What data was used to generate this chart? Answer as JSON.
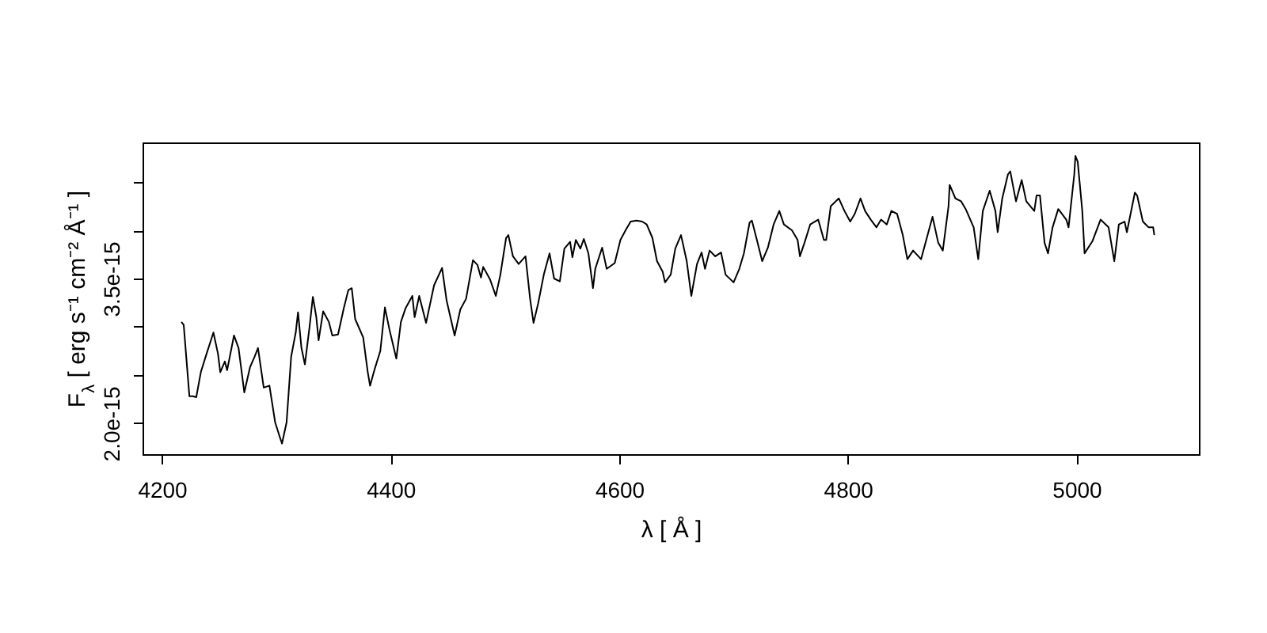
{
  "chart_data": {
    "type": "line",
    "xlabel": "λ [ Å ]",
    "ylabel": "F$_{λ}$ [ erg s⁻¹ cm⁻² Å⁻¹ ]",
    "color": "#000000",
    "xlim": [
      4183,
      5107
    ],
    "xticks": [
      4200,
      4400,
      4600,
      4800,
      5000
    ],
    "ylim": [
      1.68e-15,
      4.91e-15
    ],
    "yticks": [
      {
        "value": 2e-15,
        "label": "2.0e-15"
      },
      {
        "value": 2.5e-15,
        "label": null
      },
      {
        "value": 3e-15,
        "label": null
      },
      {
        "value": 3.5e-15,
        "label": "3.5e-15"
      },
      {
        "value": 4e-15,
        "label": null
      },
      {
        "value": 4.5e-15,
        "label": null
      }
    ],
    "x": [
      4217,
      4219,
      4224,
      4227,
      4230,
      4234,
      4239,
      4242,
      4245,
      4249,
      4251,
      4255,
      4257,
      4263,
      4267,
      4272,
      4277,
      4281,
      4284,
      4289,
      4294,
      4299,
      4303,
      4305,
      4309,
      4313,
      4317,
      4319,
      4322,
      4325,
      4329,
      4332,
      4335,
      4337,
      4341,
      4346,
      4349,
      4354,
      4359,
      4363,
      4366,
      4369,
      4376,
      4380,
      4382,
      4386,
      4391,
      4395,
      4399,
      4405,
      4409,
      4413,
      4419,
      4421,
      4425,
      4431,
      4438,
      4445,
      4449,
      4456,
      4461,
      4466,
      4472,
      4476,
      4479,
      4481,
      4487,
      4492,
      4496,
      4501,
      4503,
      4507,
      4512,
      4518,
      4522,
      4525,
      4529,
      4534,
      4539,
      4543,
      4548,
      4552,
      4557,
      4559,
      4562,
      4566,
      4569,
      4573,
      4577,
      4579,
      4585,
      4589,
      4596,
      4601,
      4606,
      4610,
      4615,
      4620,
      4624,
      4629,
      4633,
      4638,
      4640,
      4645,
      4649,
      4654,
      4659,
      4663,
      4668,
      4672,
      4675,
      4679,
      4684,
      4689,
      4693,
      4700,
      4705,
      4709,
      4714,
      4716,
      4721,
      4725,
      4730,
      4735,
      4740,
      4744,
      4751,
      4756,
      4758,
      4762,
      4767,
      4774,
      4779,
      4781,
      4785,
      4792,
      4797,
      4802,
      4806,
      4811,
      4815,
      4820,
      4825,
      4829,
      4834,
      4838,
      4843,
      4848,
      4852,
      4857,
      4864,
      4869,
      4874,
      4879,
      4883,
      4888,
      4889,
      4894,
      4899,
      4903,
      4910,
      4914,
      4918,
      4924,
      4929,
      4931,
      4935,
      4940,
      4942,
      4947,
      4952,
      4956,
      4963,
      4965,
      4968,
      4972,
      4975,
      4979,
      4984,
      4991,
      4993,
      4998,
      4999,
      5001,
      5005,
      5007,
      5014,
      5021,
      5028,
      5033,
      5037,
      5042,
      5044,
      5051,
      5053,
      5058,
      5063,
      5067,
      5068
    ],
    "values": [
      3.05e-15,
      3.02e-15,
      2.28e-15,
      2.28e-15,
      2.27e-15,
      2.53e-15,
      2.72e-15,
      2.83e-15,
      2.94e-15,
      2.72e-15,
      2.53e-15,
      2.64e-15,
      2.55e-15,
      2.91e-15,
      2.78e-15,
      2.32e-15,
      2.58e-15,
      2.69e-15,
      2.78e-15,
      2.37e-15,
      2.39e-15,
      2.01e-15,
      1.86e-15,
      1.79e-15,
      2.01e-15,
      2.69e-15,
      2.94e-15,
      3.15e-15,
      2.78e-15,
      2.61e-15,
      2.99e-15,
      3.31e-15,
      3.1e-15,
      2.86e-15,
      3.16e-15,
      3.05e-15,
      2.91e-15,
      2.92e-15,
      3.19e-15,
      3.38e-15,
      3.4e-15,
      3.08e-15,
      2.89e-15,
      2.53e-15,
      2.39e-15,
      2.56e-15,
      2.75e-15,
      3.2e-15,
      2.97e-15,
      2.67e-15,
      3.05e-15,
      3.19e-15,
      3.32e-15,
      3.1e-15,
      3.32e-15,
      3.04e-15,
      3.43e-15,
      3.61e-15,
      3.27e-15,
      2.91e-15,
      3.18e-15,
      3.29e-15,
      3.69e-15,
      3.64e-15,
      3.51e-15,
      3.62e-15,
      3.49e-15,
      3.32e-15,
      3.54e-15,
      3.92e-15,
      3.95e-15,
      3.73e-15,
      3.65e-15,
      3.73e-15,
      3.29e-15,
      3.04e-15,
      3.24e-15,
      3.54e-15,
      3.76e-15,
      3.5e-15,
      3.47e-15,
      3.81e-15,
      3.88e-15,
      3.72e-15,
      3.9e-15,
      3.81e-15,
      3.91e-15,
      3.76e-15,
      3.4e-15,
      3.6e-15,
      3.82e-15,
      3.6e-15,
      3.66e-15,
      3.9e-15,
      4.01e-15,
      4.09e-15,
      4.1e-15,
      4.09e-15,
      4.06e-15,
      3.92e-15,
      3.68e-15,
      3.57e-15,
      3.46e-15,
      3.54e-15,
      3.81e-15,
      3.95e-15,
      3.68e-15,
      3.32e-15,
      3.65e-15,
      3.77e-15,
      3.6e-15,
      3.79e-15,
      3.73e-15,
      3.77e-15,
      3.54e-15,
      3.46e-15,
      3.6e-15,
      3.76e-15,
      4.08e-15,
      4.1e-15,
      3.87e-15,
      3.68e-15,
      3.82e-15,
      4.06e-15,
      4.2e-15,
      4.06e-15,
      4e-15,
      3.9e-15,
      3.73e-15,
      3.87e-15,
      4.06e-15,
      4.11e-15,
      3.9e-15,
      3.9e-15,
      4.25e-15,
      4.33e-15,
      4.2e-15,
      4.09e-15,
      4.17e-15,
      4.33e-15,
      4.2e-15,
      4.11e-15,
      4.03e-15,
      4.11e-15,
      4.06e-15,
      4.2e-15,
      4.17e-15,
      3.95e-15,
      3.7e-15,
      3.79e-15,
      3.7e-15,
      3.92e-15,
      4.14e-15,
      3.87e-15,
      3.79e-15,
      4.25e-15,
      4.47e-15,
      4.33e-15,
      4.3e-15,
      4.22e-15,
      4.03e-15,
      3.7e-15,
      4.2e-15,
      4.41e-15,
      4.2e-15,
      3.98e-15,
      4.33e-15,
      4.58e-15,
      4.61e-15,
      4.3e-15,
      4.52e-15,
      4.3e-15,
      4.2e-15,
      4.36e-15,
      4.36e-15,
      3.87e-15,
      3.76e-15,
      4.03e-15,
      4.22e-15,
      4.11e-15,
      4.03e-15,
      4.58e-15,
      4.77e-15,
      4.71e-15,
      4.2e-15,
      3.76e-15,
      3.89e-15,
      4.11e-15,
      4.03e-15,
      3.68e-15,
      4.06e-15,
      4.09e-15,
      3.98e-15,
      4.39e-15,
      4.36e-15,
      4.09e-15,
      4.03e-15,
      4.03e-15,
      3.95e-15
    ]
  }
}
